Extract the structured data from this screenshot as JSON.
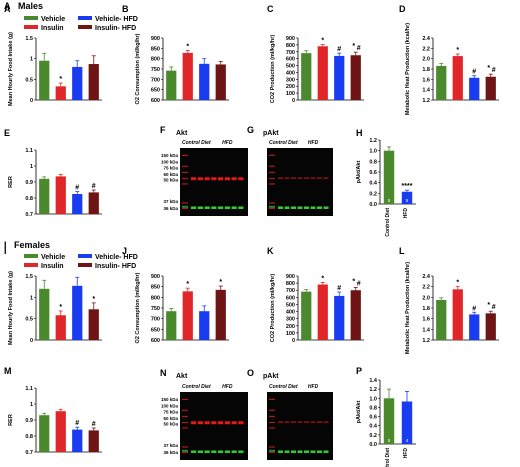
{
  "colors": {
    "vehicle": "#4a8a2c",
    "insulin": "#e1262a",
    "vehicle_hfd": "#1a3cf0",
    "insulin_hfd": "#6e1414",
    "ctrl": "#4a8a2c",
    "hfd": "#1a3cf0"
  },
  "sections": {
    "males": "Males",
    "females": "Females"
  },
  "legend": {
    "vehicle": "Vehicle",
    "insulin": "Insulin",
    "vehicle_hfd": "Vehicle- HFD",
    "insulin_hfd": "Insulin- HFD"
  },
  "chart_data": [
    {
      "id": "A",
      "type": "bar",
      "letter": "A",
      "ylabel": "Mean Hourly Food Intake (g)",
      "ylim": [
        0,
        1.5
      ],
      "ticks": [
        "0",
        "0.5",
        "1",
        "1.5"
      ],
      "tickvals": [
        0,
        0.5,
        1,
        1.5
      ],
      "series": [
        {
          "name": "Vehicle",
          "values": [
            0.95
          ]
        },
        {
          "name": "Insulin",
          "values": [
            0.33
          ]
        },
        {
          "name": "Vehicle- HFD",
          "values": [
            0.8
          ]
        },
        {
          "name": "Insulin- HFD",
          "values": [
            0.87
          ]
        }
      ],
      "errors": [
        0.18,
        0.08,
        0.15,
        0.2
      ],
      "marks": [
        "",
        "*",
        "",
        ""
      ]
    },
    {
      "id": "B",
      "type": "bar",
      "letter": "B",
      "ylabel": "O2 Consumption (ml/kg/hr)",
      "ylim": [
        600,
        900
      ],
      "ticks": [
        "600",
        "650",
        "700",
        "750",
        "800",
        "850",
        "900"
      ],
      "tickvals": [
        600,
        650,
        700,
        750,
        800,
        850,
        900
      ],
      "series": [
        {
          "name": "Vehicle",
          "values": [
            742
          ]
        },
        {
          "name": "Insulin",
          "values": [
            828
          ]
        },
        {
          "name": "Vehicle- HFD",
          "values": [
            775
          ]
        },
        {
          "name": "Insulin- HFD",
          "values": [
            772
          ]
        }
      ],
      "errors": [
        18,
        12,
        25,
        15
      ],
      "marks": [
        "",
        "*",
        "",
        ""
      ]
    },
    {
      "id": "C",
      "type": "bar",
      "letter": "C",
      "ylabel": "CO2 Production (ml/kg/hr)",
      "ylim": [
        0,
        900
      ],
      "ticks": [
        "0",
        "100",
        "200",
        "300",
        "400",
        "500",
        "600",
        "700",
        "800",
        "900"
      ],
      "tickvals": [
        0,
        100,
        200,
        300,
        400,
        500,
        600,
        700,
        800,
        900
      ],
      "series": [
        {
          "name": "Vehicle",
          "values": [
            680
          ]
        },
        {
          "name": "Insulin",
          "values": [
            780
          ]
        },
        {
          "name": "Vehicle- HFD",
          "values": [
            640
          ]
        },
        {
          "name": "Insulin- HFD",
          "values": [
            650
          ]
        }
      ],
      "errors": [
        35,
        25,
        40,
        45
      ],
      "marks": [
        "",
        "*",
        "#",
        "*,#"
      ]
    },
    {
      "id": "D",
      "type": "bar",
      "letter": "D",
      "ylabel": "Metabolic Heat Production (kcal/hr)",
      "ylim": [
        1.2,
        2.4
      ],
      "ticks": [
        "1.2",
        "1.4",
        "1.6",
        "1.8",
        "2.0",
        "2.2",
        "2.4"
      ],
      "tickvals": [
        1.2,
        1.4,
        1.6,
        1.8,
        2.0,
        2.2,
        2.4
      ],
      "series": [
        {
          "name": "Vehicle",
          "values": [
            1.86
          ]
        },
        {
          "name": "Insulin",
          "values": [
            2.05
          ]
        },
        {
          "name": "Vehicle- HFD",
          "values": [
            1.63
          ]
        },
        {
          "name": "Insulin- HFD",
          "values": [
            1.65
          ]
        }
      ],
      "errors": [
        0.05,
        0.04,
        0.04,
        0.05
      ],
      "marks": [
        "",
        "*",
        "#",
        "*,#"
      ]
    },
    {
      "id": "E",
      "type": "bar",
      "letter": "E",
      "ylabel": "RER",
      "ylim": [
        0.7,
        1.1
      ],
      "ticks": [
        "0.7",
        "0.8",
        "0.9",
        "1",
        "1.1"
      ],
      "tickvals": [
        0.7,
        0.8,
        0.9,
        1.0,
        1.1
      ],
      "series": [
        {
          "name": "Vehicle",
          "values": [
            0.92
          ]
        },
        {
          "name": "Insulin",
          "values": [
            0.935
          ]
        },
        {
          "name": "Vehicle- HFD",
          "values": [
            0.825
          ]
        },
        {
          "name": "Insulin- HFD",
          "values": [
            0.835
          ]
        }
      ],
      "errors": [
        0.012,
        0.012,
        0.015,
        0.015
      ],
      "marks": [
        "",
        "",
        "#",
        "#"
      ]
    },
    {
      "id": "H",
      "type": "bar",
      "letter": "H",
      "ylabel": "pAkt/Akt",
      "ylim": [
        0,
        1.2
      ],
      "ticks": [
        "0.0",
        "0.2",
        "0.4",
        "0.6",
        "0.8",
        "1.0",
        "1.2"
      ],
      "tickvals": [
        0,
        0.2,
        0.4,
        0.6,
        0.8,
        1.0,
        1.2
      ],
      "categories": [
        "Control Diet",
        "HFD"
      ],
      "values": [
        1.0,
        0.23
      ],
      "errors": [
        0.07,
        0.03
      ],
      "marks": [
        "",
        "****"
      ],
      "n": [
        "5",
        "5"
      ]
    },
    {
      "id": "I",
      "type": "bar",
      "letter": "I",
      "ylabel": "Mean Hourly Food Intake (g)",
      "ylim": [
        0,
        1.5
      ],
      "ticks": [
        "0",
        "0.5",
        "1",
        "1.5"
      ],
      "tickvals": [
        0,
        0.5,
        1,
        1.5
      ],
      "series": [
        {
          "name": "Vehicle",
          "values": [
            1.2
          ]
        },
        {
          "name": "Insulin",
          "values": [
            0.58
          ]
        },
        {
          "name": "Vehicle- HFD",
          "values": [
            1.27
          ]
        },
        {
          "name": "Insulin- HFD",
          "values": [
            0.72
          ]
        }
      ],
      "errors": [
        0.2,
        0.1,
        0.2,
        0.15
      ],
      "marks": [
        "",
        "*",
        "",
        "*"
      ]
    },
    {
      "id": "J",
      "type": "bar",
      "letter": "J",
      "ylabel": "O2 Consumption (ml/kg/hr)",
      "ylim": [
        600,
        900
      ],
      "ticks": [
        "600",
        "650",
        "700",
        "750",
        "800",
        "850",
        "900"
      ],
      "tickvals": [
        600,
        650,
        700,
        750,
        800,
        850,
        900
      ],
      "series": [
        {
          "name": "Vehicle",
          "values": [
            735
          ]
        },
        {
          "name": "Insulin",
          "values": [
            828
          ]
        },
        {
          "name": "Vehicle- HFD",
          "values": [
            735
          ]
        },
        {
          "name": "Insulin- HFD",
          "values": [
            835
          ]
        }
      ],
      "errors": [
        12,
        15,
        25,
        18
      ],
      "marks": [
        "",
        "*",
        "",
        "*"
      ]
    },
    {
      "id": "K",
      "type": "bar",
      "letter": "K",
      "ylabel": "CO2 Production (ml/kg/hr)",
      "ylim": [
        0,
        900
      ],
      "ticks": [
        "0",
        "100",
        "200",
        "300",
        "400",
        "500",
        "600",
        "700",
        "800",
        "900"
      ],
      "tickvals": [
        0,
        100,
        200,
        300,
        400,
        500,
        600,
        700,
        800,
        900
      ],
      "series": [
        {
          "name": "Vehicle",
          "values": [
            680
          ]
        },
        {
          "name": "Insulin",
          "values": [
            780
          ]
        },
        {
          "name": "Vehicle- HFD",
          "values": [
            620
          ]
        },
        {
          "name": "Insulin- HFD",
          "values": [
            700
          ]
        }
      ],
      "errors": [
        30,
        30,
        55,
        40
      ],
      "marks": [
        "",
        "*",
        "#",
        "*,#"
      ]
    },
    {
      "id": "L",
      "type": "bar",
      "letter": "L",
      "ylabel": "Metabolic Heat Production (kcal/hr)",
      "ylim": [
        1.2,
        2.4
      ],
      "ticks": [
        "1.2",
        "1.4",
        "1.6",
        "1.8",
        "2.0",
        "2.2",
        "2.4"
      ],
      "tickvals": [
        1.2,
        1.4,
        1.6,
        1.8,
        2.0,
        2.2,
        2.4
      ],
      "series": [
        {
          "name": "Vehicle",
          "values": [
            1.95
          ]
        },
        {
          "name": "Insulin",
          "values": [
            2.15
          ]
        },
        {
          "name": "Vehicle- HFD",
          "values": [
            1.68
          ]
        },
        {
          "name": "Insulin- HFD",
          "values": [
            1.7
          ]
        }
      ],
      "errors": [
        0.04,
        0.05,
        0.04,
        0.04
      ],
      "marks": [
        "",
        "*",
        "#",
        "*,#"
      ]
    },
    {
      "id": "M",
      "type": "bar",
      "letter": "M",
      "ylabel": "RER",
      "ylim": [
        0.7,
        1.1
      ],
      "ticks": [
        "0.7",
        "0.8",
        "0.9",
        "1",
        "1.1"
      ],
      "tickvals": [
        0.7,
        0.8,
        0.9,
        1.0,
        1.1
      ],
      "series": [
        {
          "name": "Vehicle",
          "values": [
            0.93
          ]
        },
        {
          "name": "Insulin",
          "values": [
            0.955
          ]
        },
        {
          "name": "Vehicle- HFD",
          "values": [
            0.84
          ]
        },
        {
          "name": "Insulin- HFD",
          "values": [
            0.835
          ]
        }
      ],
      "errors": [
        0.012,
        0.012,
        0.015,
        0.015
      ],
      "marks": [
        "",
        "",
        "#",
        "#"
      ]
    },
    {
      "id": "P",
      "type": "bar",
      "letter": "P",
      "ylabel": "pAkt/Akt",
      "ylim": [
        0,
        1.4
      ],
      "ticks": [
        "0.0",
        "0.2",
        "0.4",
        "0.6",
        "0.8",
        "1.0",
        "1.2",
        "1.4"
      ],
      "tickvals": [
        0,
        0.2,
        0.4,
        0.6,
        0.8,
        1.0,
        1.2,
        1.4
      ],
      "categories": [
        "Control Diet",
        "HFD"
      ],
      "values": [
        1.0,
        0.93
      ],
      "errors": [
        0.2,
        0.22
      ],
      "marks": [
        "",
        ""
      ],
      "n": [
        "5",
        "4"
      ]
    }
  ],
  "blots": [
    {
      "id": "F",
      "letter": "F",
      "title": "Akt",
      "labels": [
        "Control Diet",
        "HFD"
      ],
      "markers": [
        "150 kDa",
        "100 kDa",
        "75 kDa",
        "60 kDa",
        "50 kDa",
        "37 kDa",
        "36 kDa"
      ]
    },
    {
      "id": "G",
      "letter": "G",
      "title": "pAkt",
      "labels": [
        "Control Diet",
        "HFD"
      ],
      "markers": []
    },
    {
      "id": "N",
      "letter": "N",
      "title": "Akt",
      "labels": [
        "Control Diet",
        "HFD"
      ],
      "markers": [
        "150 kDa",
        "100 kDa",
        "75 kDa",
        "60 kDa",
        "50 kDa",
        "37 kDa",
        "36 kDa"
      ]
    },
    {
      "id": "O",
      "letter": "O",
      "title": "pAkt",
      "labels": [
        "Control Diet",
        "HFD"
      ],
      "markers": []
    }
  ]
}
